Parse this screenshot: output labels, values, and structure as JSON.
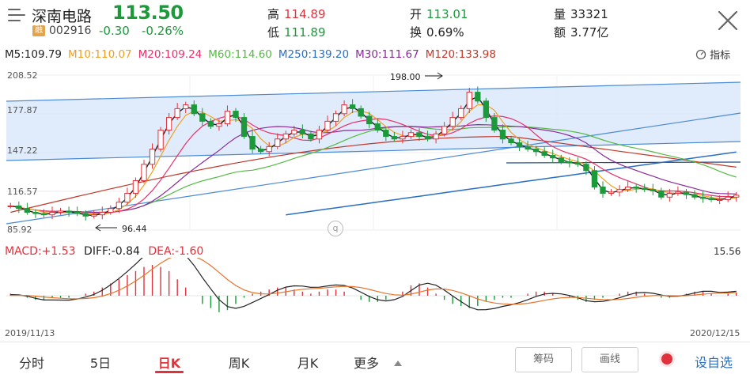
{
  "header": {
    "stock_name": "深南电路",
    "price": "113.50",
    "badge": "融",
    "code": "002916",
    "change": "-0.30",
    "change_pct": "-0.26%",
    "stats": {
      "high_label": "高",
      "high": "114.89",
      "low_label": "低",
      "low": "111.89",
      "open_label": "开",
      "open": "113.01",
      "turnover_label": "换",
      "turnover": "0.69%",
      "volume_label": "量",
      "volume": "33321",
      "amount_label": "额",
      "amount": "3.77亿"
    }
  },
  "ma_legend": {
    "ma5": "M5:109.79",
    "ma10": "M10:110.07",
    "ma20": "M20:109.24",
    "ma60": "M60:114.60",
    "ma250": "M250:139.20",
    "ma30": "M30:111.67",
    "ma120": "M120:133.98",
    "indicator_label": "指标"
  },
  "colors": {
    "ma5": "#222222",
    "ma10": "#f0a020",
    "ma20": "#e8306a",
    "ma60": "#55b944",
    "ma250": "#2a6fc0",
    "ma30": "#8a2a9a",
    "ma120": "#c0392b",
    "up": "#e0323c",
    "down": "#1c9a3b",
    "channel": "#4a8ad6"
  },
  "chart_axes": {
    "price_ticks": [
      "208.52",
      "177.87",
      "147.22",
      "116.57",
      "85.92"
    ],
    "high_marker": "198.00",
    "low_marker": "96.44",
    "macd_max": "15.56",
    "start_date": "2019/11/13",
    "end_date": "2020/12/15"
  },
  "macd_legend": {
    "macd": "MACD:+1.53",
    "diff": "DIFF:-0.84",
    "dea": "DEA:-1.60"
  },
  "chart_data": {
    "type": "candlestick",
    "ylim": [
      85.92,
      208.52
    ],
    "x_range": [
      "2019/11/13",
      "2020/12/15"
    ],
    "close_approx": [
      105,
      103,
      100,
      99,
      98,
      100,
      101,
      100,
      99,
      97,
      98,
      100,
      103,
      108,
      115,
      125,
      138,
      150,
      165,
      175,
      182,
      185,
      178,
      172,
      168,
      170,
      180,
      175,
      160,
      150,
      148,
      152,
      158,
      162,
      165,
      162,
      158,
      165,
      172,
      178,
      185,
      182,
      176,
      170,
      165,
      160,
      158,
      160,
      163,
      160,
      158,
      162,
      168,
      175,
      182,
      195,
      188,
      175,
      165,
      158,
      155,
      152,
      150,
      148,
      145,
      143,
      140,
      139,
      138,
      133,
      120,
      115,
      116,
      118,
      120,
      119,
      118,
      117,
      112,
      115,
      116,
      114,
      112,
      111,
      110,
      110,
      112,
      113.5
    ],
    "macd_hist_approx": [
      1,
      0,
      -1,
      -2,
      -2,
      -1,
      -1,
      -1,
      0,
      1,
      2,
      4,
      6,
      8,
      10,
      12,
      14,
      15,
      14,
      12,
      8,
      4,
      0,
      -4,
      -6,
      -8,
      -7,
      -4,
      -1,
      1,
      2,
      3,
      4,
      4,
      3,
      2,
      1,
      2,
      3,
      3,
      2,
      0,
      -2,
      -3,
      -3,
      -2,
      0,
      2,
      5,
      6,
      4,
      1,
      -2,
      -4,
      -5,
      -6,
      -5,
      -3,
      -2,
      -1,
      -1,
      0,
      1,
      2,
      2,
      1,
      0,
      -1,
      -2,
      -3,
      -2,
      -1,
      0,
      1,
      2,
      2,
      1,
      0,
      -1,
      -1,
      0,
      1,
      2,
      2,
      1,
      0,
      1,
      1.53
    ]
  },
  "bottom_tabs": [
    "分时",
    "5日",
    "日K",
    "周K",
    "月K",
    "更多"
  ],
  "active_tab": "日K",
  "buttons": {
    "chips": "筹码",
    "draw_line": "画线",
    "self_select": "设自选"
  }
}
